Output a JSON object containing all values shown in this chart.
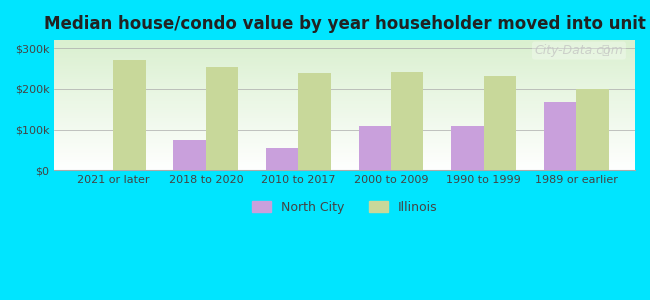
{
  "title": "Median house/condo value by year householder moved into unit",
  "categories": [
    "2021 or later",
    "2018 to 2020",
    "2010 to 2017",
    "2000 to 2009",
    "1990 to 1999",
    "1989 or earlier"
  ],
  "north_city": [
    0,
    75000,
    55000,
    110000,
    110000,
    168000
  ],
  "illinois": [
    270000,
    255000,
    240000,
    242000,
    232000,
    200000
  ],
  "north_city_color": "#c9a0dc",
  "illinois_color": "#c8d89a",
  "background_outer": "#00e5ff",
  "background_inner_top": "#e8f5e0",
  "background_inner_bottom": "#ffffff",
  "ylim": [
    0,
    320000
  ],
  "yticks": [
    0,
    100000,
    200000,
    300000
  ],
  "ytick_labels": [
    "$0",
    "$100k",
    "$200k",
    "$300k"
  ],
  "legend_north_city": "North City",
  "legend_illinois": "Illinois",
  "bar_width": 0.35,
  "watermark": "City-Data.com"
}
